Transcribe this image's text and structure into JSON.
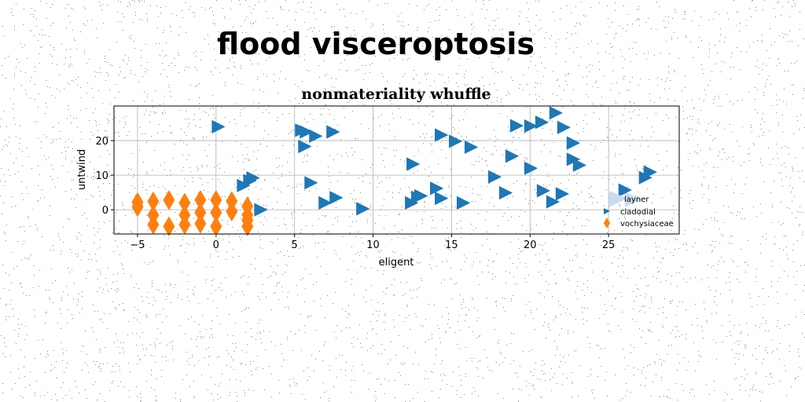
{
  "page": {
    "title": "flood visceroptosis"
  },
  "colors": {
    "blue": "#1f77b4",
    "orange": "#ff7f0e",
    "light_blue": "#c9dcef"
  },
  "chart_data": {
    "type": "scatter",
    "title": "nonmateriality whuffle",
    "xlabel": "eligent",
    "ylabel": "untwind",
    "xlim": [
      -6.5,
      29.5
    ],
    "ylim": [
      -7,
      30
    ],
    "xticks": [
      -5,
      0,
      5,
      10,
      15,
      20,
      25
    ],
    "yticks": [
      0,
      10,
      20
    ],
    "xtick_labels": [
      "−5",
      "0",
      "5",
      "10",
      "15",
      "20",
      "25"
    ],
    "ytick_labels": [
      "0",
      "10",
      "20"
    ],
    "grid": true,
    "legend_position": "lower-right",
    "series": [
      {
        "name": "layner",
        "marker": "large-triangle-right",
        "color": "#c9dcef",
        "points": [
          [
            25.5,
            3.0
          ],
          [
            26.5,
            3.0
          ]
        ]
      },
      {
        "name": "cladodial",
        "marker": "triangle-right",
        "color": "#1f77b4",
        "points": [
          [
            0.1,
            24
          ],
          [
            5.4,
            23
          ],
          [
            5.7,
            22.5
          ],
          [
            6.3,
            21.3
          ],
          [
            7.4,
            22.5
          ],
          [
            5.6,
            18.3
          ],
          [
            1.7,
            7
          ],
          [
            2.1,
            8.4
          ],
          [
            2.3,
            9.2
          ],
          [
            6.0,
            7.8
          ],
          [
            6.9,
            2.0
          ],
          [
            7.6,
            3.5
          ],
          [
            2.8,
            0
          ],
          [
            9.3,
            0.3
          ],
          [
            12.4,
            2.0
          ],
          [
            12.8,
            3.6
          ],
          [
            13.0,
            4.0
          ],
          [
            12.5,
            13.2
          ],
          [
            14.0,
            6.2
          ],
          [
            14.3,
            21.6
          ],
          [
            14.3,
            3.3
          ],
          [
            15.2,
            19.8
          ],
          [
            15.7,
            2.0
          ],
          [
            16.2,
            18.1
          ],
          [
            17.7,
            9.5
          ],
          [
            18.4,
            4.9
          ],
          [
            19.1,
            24.3
          ],
          [
            18.8,
            15.5
          ],
          [
            20.0,
            24.2
          ],
          [
            20.0,
            12.0
          ],
          [
            20.7,
            25.3
          ],
          [
            21.6,
            28.0
          ],
          [
            22.1,
            23.8
          ],
          [
            20.8,
            5.5
          ],
          [
            21.4,
            2.3
          ],
          [
            22.0,
            4.6
          ],
          [
            22.7,
            19.3
          ],
          [
            22.7,
            14.6
          ],
          [
            23.1,
            12.9
          ],
          [
            27.6,
            10.9
          ],
          [
            27.3,
            9.3
          ],
          [
            26.0,
            5.7
          ]
        ]
      },
      {
        "name": "vochysiaceae",
        "marker": "thin-diamond",
        "color": "#ff7f0e",
        "points": [
          [
            -5,
            2.2
          ],
          [
            -5,
            0.8
          ],
          [
            -4,
            2.4
          ],
          [
            -4,
            -1.5
          ],
          [
            -4,
            -4.3
          ],
          [
            -3,
            2.8
          ],
          [
            -3,
            -4.8
          ],
          [
            -2,
            2.0
          ],
          [
            -2,
            -1.5
          ],
          [
            -2,
            -4.3
          ],
          [
            -1,
            2.8
          ],
          [
            -1,
            -0.8
          ],
          [
            -1,
            -4.0
          ],
          [
            0,
            2.8
          ],
          [
            0,
            -0.8
          ],
          [
            0,
            -4.8
          ],
          [
            1,
            2.5
          ],
          [
            1,
            -0.5
          ],
          [
            2,
            1.0
          ],
          [
            2,
            -1.5
          ],
          [
            2,
            -3.0
          ],
          [
            2,
            -4.8
          ]
        ]
      }
    ]
  }
}
